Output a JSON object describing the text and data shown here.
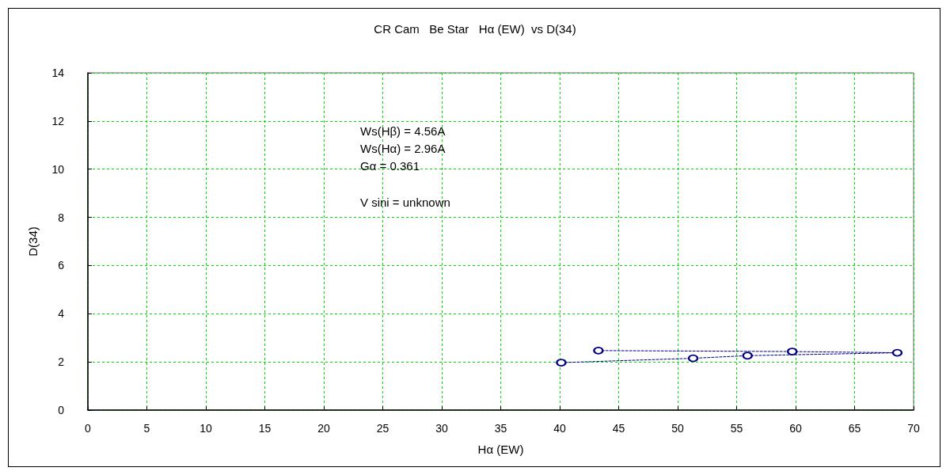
{
  "chart_data": {
    "type": "line",
    "title": "CR Cam   Be Star   Hα (EW)  vs D(34)",
    "xlabel": "Hα (EW)",
    "ylabel": "D(34)",
    "annotations": [
      "Ws(Hβ) = 4.56A",
      "Ws(Hα) = 2.96A",
      "Gα = 0.361",
      "V sini = unknown"
    ],
    "series": [
      {
        "color": "#000080",
        "x": [
          40.13,
          51.31,
          55.92,
          68.62,
          59.71,
          43.28
        ],
        "values": [
          1.97,
          2.15,
          2.26,
          2.38,
          2.43,
          2.47
        ]
      }
    ],
    "xlim": [
      0,
      70
    ],
    "xticks": [
      0,
      5,
      10,
      15,
      20,
      25,
      30,
      35,
      40,
      45,
      50,
      55,
      60,
      65,
      70
    ],
    "ylim": [
      0,
      14
    ],
    "yticks": [
      0,
      2,
      4,
      6,
      8,
      10,
      12,
      14
    ],
    "grid": true,
    "marker": "circle",
    "line_style": "dashed"
  }
}
